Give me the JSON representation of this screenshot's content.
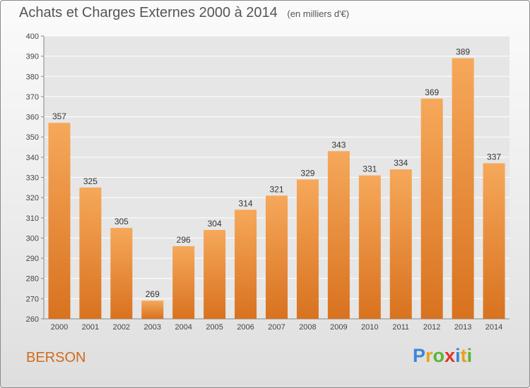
{
  "header": {
    "title": "Achats et Charges Externes 2000 à 2014",
    "subtitle": "(en milliers d'€)"
  },
  "footer": {
    "place": "BERSON",
    "logo_text": "Proxiti",
    "logo_colors": [
      "#3a86d8",
      "#e8a21b",
      "#5cb531",
      "#e0342f",
      "#3a86d8",
      "#e8a21b",
      "#5cb531"
    ]
  },
  "colors": {
    "bar_top": "#f6a85a",
    "bar_bottom": "#d8721f",
    "grid": "#ffffff",
    "axis_text": "#444444",
    "plot_bg": "#e6e6e6"
  },
  "chart_data": {
    "type": "bar",
    "categories": [
      "2000",
      "2001",
      "2002",
      "2003",
      "2004",
      "2005",
      "2006",
      "2007",
      "2008",
      "2009",
      "2010",
      "2011",
      "2012",
      "2013",
      "2014"
    ],
    "values": [
      357,
      325,
      305,
      269,
      296,
      304,
      314,
      321,
      329,
      343,
      331,
      334,
      369,
      389,
      337
    ],
    "title": "Achats et Charges Externes 2000 à 2014",
    "subtitle": "(en milliers d'€)",
    "xlabel": "",
    "ylabel": "",
    "ylim": [
      260,
      400
    ],
    "yticks": [
      260,
      270,
      280,
      290,
      300,
      310,
      320,
      330,
      340,
      350,
      360,
      370,
      380,
      390,
      400
    ],
    "grid": true,
    "data_labels": true
  }
}
